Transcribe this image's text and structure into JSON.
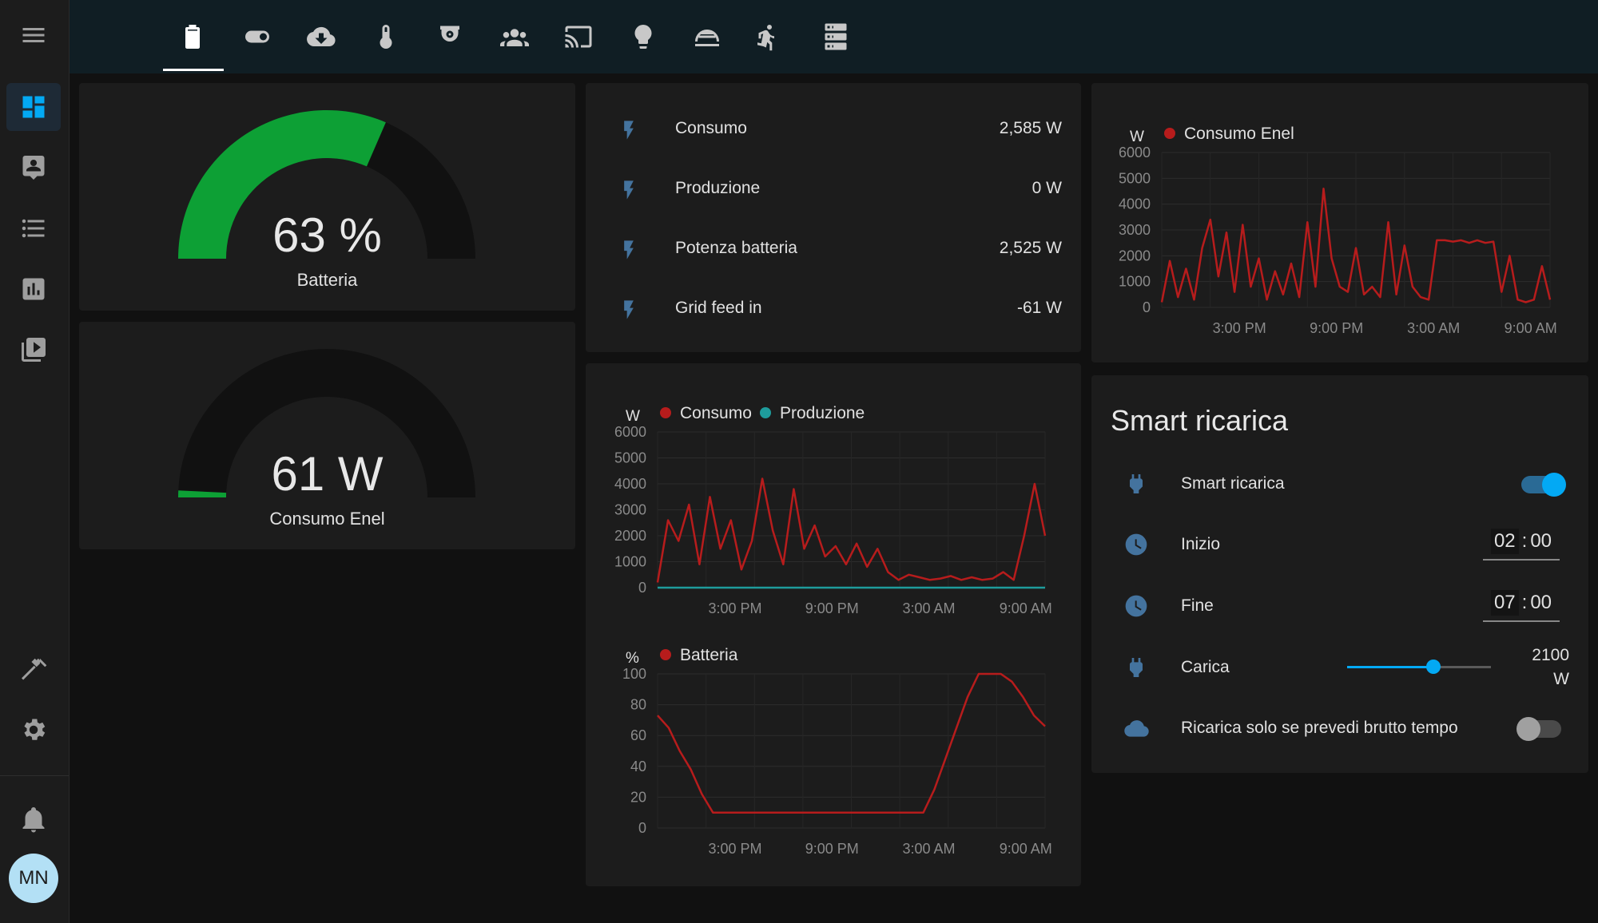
{
  "theme": {
    "accent": "#03a9f4",
    "series_red": "#b71c1c",
    "series_teal": "#1e9c9c",
    "gauge_green": "#0da035",
    "icon_blue": "#44739e"
  },
  "sidebar": {
    "items": [
      {
        "icon": "dashboard-icon",
        "active": true
      },
      {
        "icon": "account-box-icon"
      },
      {
        "icon": "list-icon"
      },
      {
        "icon": "chart-bar-icon"
      },
      {
        "icon": "media-icon"
      }
    ],
    "bottom": [
      {
        "icon": "hammer-icon"
      },
      {
        "icon": "gear-icon"
      },
      {
        "icon": "bell-icon"
      }
    ],
    "avatar": "MN"
  },
  "toolbar": {
    "tabs": [
      "battery-icon",
      "toggle-icon",
      "cloud-download-icon",
      "thermometer-icon",
      "cctv-icon",
      "people-icon",
      "cast-icon",
      "lightbulb-icon",
      "weather-icon",
      "motion-icon",
      "server-icon"
    ],
    "active_tab": 0
  },
  "gauge_batteria": {
    "value_text": "63 %",
    "label": "Batteria",
    "fraction": 0.63
  },
  "gauge_enel": {
    "value_text": "61 W",
    "label": "Consumo Enel",
    "fraction": 0.015
  },
  "entities": [
    {
      "name": "Consumo",
      "value": "2,585 W"
    },
    {
      "name": "Produzione",
      "value": "0 W"
    },
    {
      "name": "Potenza batteria",
      "value": "2,525 W"
    },
    {
      "name": "Grid feed in",
      "value": "-61 W"
    }
  ],
  "smart": {
    "title": "Smart ricarica",
    "rows": {
      "toggle": {
        "name": "Smart ricarica",
        "on": true
      },
      "inizio": {
        "name": "Inizio",
        "hh": "02",
        "mm": "00"
      },
      "fine": {
        "name": "Fine",
        "hh": "07",
        "mm": "00"
      },
      "carica": {
        "name": "Carica",
        "value": "2100",
        "unit": "W",
        "fraction": 0.6
      },
      "meteo": {
        "name": "Ricarica solo se prevedi brutto tempo",
        "on": false
      }
    }
  },
  "chart_data": [
    {
      "type": "line",
      "ylabel": "W",
      "ylim": [
        0,
        6000
      ],
      "yticks": [
        "6000",
        "5000",
        "4000",
        "3000",
        "2000",
        "1000",
        "0"
      ],
      "xticks": [
        "3:00 PM",
        "9:00 PM",
        "3:00 AM",
        "9:00 AM"
      ],
      "series": [
        {
          "name": "Consumo",
          "color": "#b71c1c",
          "values": [
            200,
            2600,
            1800,
            3200,
            900,
            3500,
            1500,
            2600,
            700,
            1800,
            4200,
            2200,
            900,
            3800,
            1500,
            2400,
            1200,
            1600,
            900,
            1700,
            800,
            1500,
            600,
            300,
            500,
            400,
            300,
            350,
            450,
            300,
            400,
            300,
            350,
            600,
            300,
            2000,
            4000,
            2000
          ]
        },
        {
          "name": "Produzione",
          "color": "#1e9c9c",
          "values": [
            0,
            0,
            0,
            0,
            0,
            0,
            0,
            0,
            0,
            0,
            0,
            0,
            0,
            0,
            0,
            0,
            0,
            0,
            0,
            0,
            0,
            0,
            0,
            0,
            0,
            0,
            0,
            0,
            0,
            0,
            0,
            0,
            0,
            0,
            0,
            0,
            0,
            0
          ]
        }
      ]
    },
    {
      "type": "line",
      "ylabel": "%",
      "ylim": [
        0,
        100
      ],
      "yticks": [
        "100",
        "80",
        "60",
        "40",
        "20",
        "0"
      ],
      "xticks": [
        "3:00 PM",
        "9:00 PM",
        "3:00 AM",
        "9:00 AM"
      ],
      "series": [
        {
          "name": "Batteria",
          "color": "#b71c1c",
          "values": [
            73,
            65,
            50,
            38,
            22,
            10,
            10,
            10,
            10,
            10,
            10,
            10,
            10,
            10,
            10,
            10,
            10,
            10,
            10,
            10,
            10,
            10,
            10,
            10,
            10,
            25,
            45,
            65,
            85,
            100,
            100,
            100,
            95,
            85,
            73,
            66
          ]
        }
      ]
    },
    {
      "type": "line",
      "ylabel": "W",
      "ylim": [
        0,
        6000
      ],
      "yticks": [
        "6000",
        "5000",
        "4000",
        "3000",
        "2000",
        "1000",
        "0"
      ],
      "xticks": [
        "3:00 PM",
        "9:00 PM",
        "3:00 AM",
        "9:00 AM"
      ],
      "series": [
        {
          "name": "Consumo Enel",
          "color": "#b71c1c",
          "values": [
            200,
            1800,
            400,
            1500,
            300,
            2300,
            3400,
            1200,
            2900,
            600,
            3200,
            800,
            1900,
            300,
            1400,
            500,
            1700,
            400,
            3300,
            800,
            4600,
            1900,
            800,
            600,
            2300,
            500,
            800,
            400,
            3300,
            500,
            2400,
            800,
            400,
            300,
            2600,
            2600,
            2550,
            2600,
            2500,
            2600,
            2500,
            2550,
            600,
            2000,
            300,
            200,
            300,
            1600,
            300
          ]
        }
      ]
    }
  ]
}
